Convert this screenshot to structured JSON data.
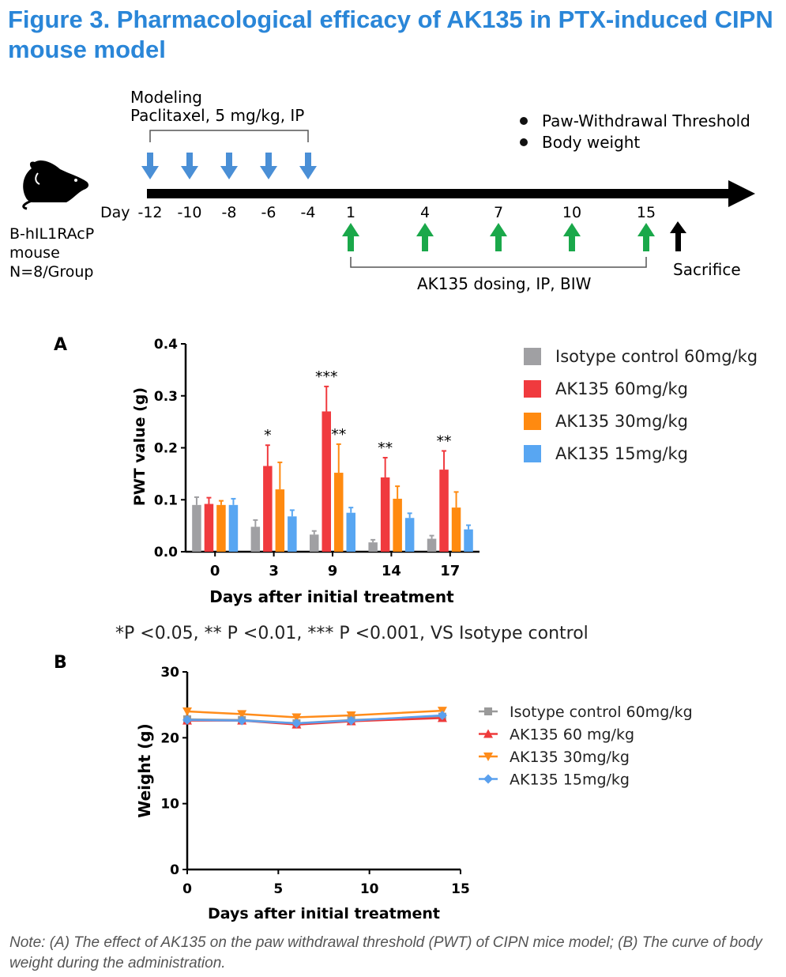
{
  "figure_title": "Figure 3. Pharmacological efficacy of AK135 in PTX-induced CIPN mouse model",
  "timeline": {
    "modeling_label": "Modeling",
    "modeling_detail": "Paclitaxel, 5 mg/kg, IP",
    "measure_1": "Paw-Withdrawal Threshold",
    "measure_2": "Body weight",
    "day_prefix": "Day",
    "modeling_days": [
      "-12",
      "-10",
      "-8",
      "-6",
      "-4"
    ],
    "dosing_days": [
      "1",
      "4",
      "7",
      "10",
      "15"
    ],
    "mouse_lines": [
      "B-hIL1RAcP",
      "mouse",
      "N=8/Group"
    ],
    "dosing_label": "AK135 dosing, IP, BIW",
    "sacrifice_label": "Sacrifice",
    "colors": {
      "modeling_arrow": "#4a8fd6",
      "dosing_arrow": "#1aa84a",
      "axis": "#000000"
    }
  },
  "panel_a": {
    "label": "A"
  },
  "significance_note": "*P <0.05, ** P <0.01, *** P <0.001, VS Isotype control",
  "panel_b": {
    "label": "B"
  },
  "note": "Note: (A) The effect of AK135 on the paw withdrawal threshold (PWT) of CIPN mice model; (B) The curve of body weight during the administration.",
  "chart_data": [
    {
      "type": "bar",
      "title": "",
      "xlabel": "Days after initial treatment",
      "ylabel": "PWT value (g)",
      "ylim": [
        0,
        0.4
      ],
      "yticks": [
        0.0,
        0.1,
        0.2,
        0.3,
        0.4
      ],
      "categories": [
        "0",
        "3",
        "9",
        "14",
        "17"
      ],
      "series": [
        {
          "name": "Isotype control 60mg/kg",
          "color": "#a0a0a3",
          "values": [
            0.09,
            0.048,
            0.033,
            0.018,
            0.025
          ],
          "errors": [
            0.015,
            0.013,
            0.007,
            0.005,
            0.006
          ]
        },
        {
          "name": "AK135 60mg/kg",
          "color": "#f03a3e",
          "values": [
            0.092,
            0.165,
            0.27,
            0.143,
            0.158
          ],
          "errors": [
            0.012,
            0.04,
            0.048,
            0.038,
            0.036
          ]
        },
        {
          "name": "AK135 30mg/kg",
          "color": "#ff8a10",
          "values": [
            0.09,
            0.12,
            0.152,
            0.102,
            0.085
          ],
          "errors": [
            0.008,
            0.052,
            0.055,
            0.024,
            0.03
          ]
        },
        {
          "name": "AK135 15mg/kg",
          "color": "#58a6f2",
          "values": [
            0.09,
            0.068,
            0.075,
            0.065,
            0.043
          ],
          "errors": [
            0.012,
            0.012,
            0.01,
            0.009,
            0.008
          ]
        }
      ],
      "annotations": [
        {
          "category": "3",
          "series": "AK135 60mg/kg",
          "text": "*"
        },
        {
          "category": "9",
          "series": "AK135 60mg/kg",
          "text": "***"
        },
        {
          "category": "9",
          "series": "AK135 30mg/kg",
          "text": "**"
        },
        {
          "category": "14",
          "series": "AK135 60mg/kg",
          "text": "**"
        },
        {
          "category": "17",
          "series": "AK135 60mg/kg",
          "text": "**"
        }
      ],
      "legend": "right"
    },
    {
      "type": "line",
      "title": "",
      "xlabel": "Days after initial treatment",
      "ylabel": "Weight (g)",
      "xlim": [
        0,
        15
      ],
      "ylim": [
        0,
        30
      ],
      "xticks": [
        0,
        5,
        10,
        15
      ],
      "yticks": [
        0,
        10,
        20,
        30
      ],
      "x": [
        0,
        3,
        6,
        9,
        14
      ],
      "series": [
        {
          "name": "Isotype control 60mg/kg",
          "color": "#9a9a9a",
          "marker": "square",
          "values": [
            22.8,
            22.7,
            22.2,
            22.7,
            23.2
          ]
        },
        {
          "name": "AK135 60 mg/kg",
          "color": "#ee3b3b",
          "marker": "triangle-up",
          "values": [
            22.6,
            22.6,
            22.0,
            22.5,
            23.0
          ]
        },
        {
          "name": "AK135 30mg/kg",
          "color": "#ff8c1a",
          "marker": "triangle-down",
          "values": [
            24.0,
            23.6,
            23.1,
            23.4,
            24.1
          ]
        },
        {
          "name": "AK135 15mg/kg",
          "color": "#5aa0ee",
          "marker": "diamond",
          "values": [
            22.7,
            22.6,
            22.2,
            22.6,
            23.4
          ]
        }
      ],
      "legend": "right"
    }
  ]
}
